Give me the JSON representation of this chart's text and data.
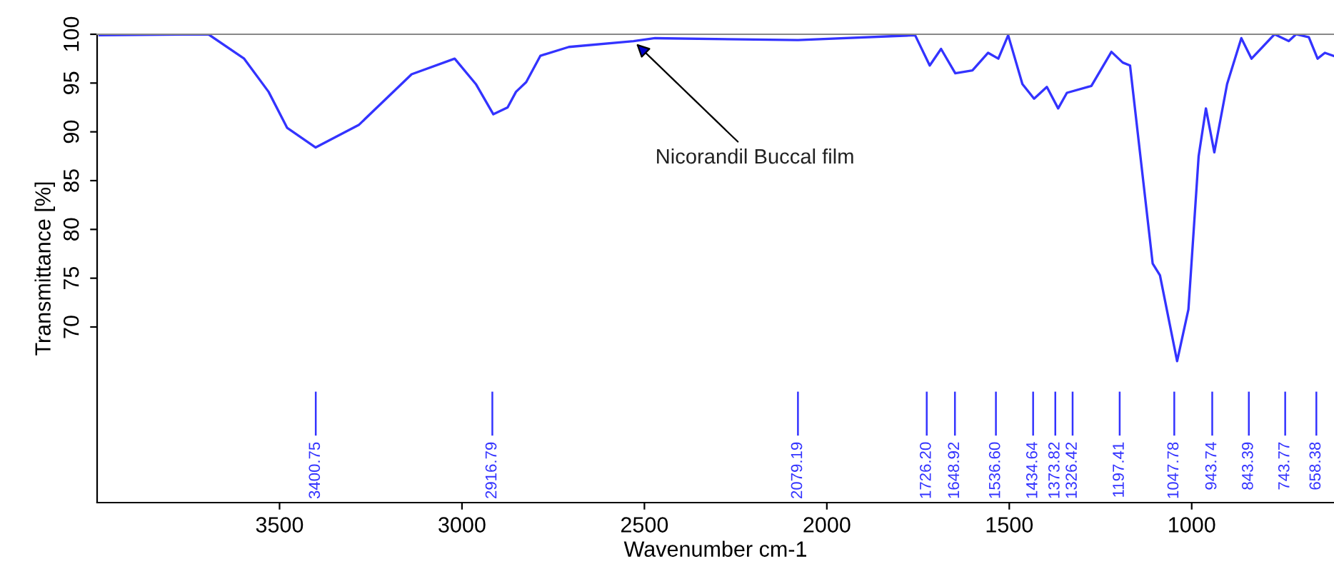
{
  "chart_data": {
    "type": "line",
    "xlabel": "Wavenumber cm-1",
    "ylabel": "Transmittance [%]",
    "xlim": [
      4000,
      610
    ],
    "ylim": [
      52,
      100
    ],
    "xticks": [
      3500,
      3000,
      2500,
      2000,
      1500,
      1000
    ],
    "yticks": [
      70,
      75,
      80,
      85,
      90,
      95,
      100
    ],
    "grid": false,
    "legend": false,
    "series": [
      {
        "color": "#3333ff",
        "x": [
          3993,
          3695,
          3597,
          3530,
          3479,
          3401,
          3283,
          3138,
          3020,
          2962,
          2914,
          2875,
          2852,
          2824,
          2785,
          2707,
          2530,
          2471,
          2079,
          1758,
          1718,
          1687,
          1648,
          1601,
          1558,
          1530,
          1503,
          1464,
          1432,
          1397,
          1366,
          1342,
          1275,
          1220,
          1189,
          1169,
          1107,
          1087,
          1040,
          1009,
          981,
          961,
          938,
          903,
          864,
          836,
          773,
          734,
          714,
          679,
          655,
          635,
          612
        ],
        "values": [
          99.9,
          100,
          97.5,
          94.1,
          90.4,
          88.4,
          90.7,
          95.9,
          97.5,
          94.9,
          91.8,
          92.5,
          94.1,
          95.1,
          97.8,
          98.7,
          99.3,
          99.6,
          99.4,
          99.9,
          96.8,
          98.5,
          96.0,
          96.3,
          98.1,
          97.5,
          99.9,
          94.9,
          93.4,
          94.6,
          92.4,
          94.0,
          94.7,
          98.2,
          97.1,
          96.8,
          76.5,
          75.3,
          66.5,
          71.8,
          87.5,
          92.4,
          87.9,
          94.9,
          99.6,
          97.5,
          100,
          99.3,
          100,
          99.7,
          97.5,
          98.1,
          97.8
        ]
      }
    ],
    "annotations": [
      {
        "text": "Nicorandil Buccal film",
        "x": 2530,
        "y": 99.3
      }
    ],
    "ref_lines": [
      {
        "axis": "x",
        "value": 3400.75,
        "label": "3400.75",
        "color": "#3333ff"
      },
      {
        "axis": "x",
        "value": 2916.79,
        "label": "2916.79",
        "color": "#3333ff"
      },
      {
        "axis": "x",
        "value": 2079.19,
        "label": "2079.19",
        "color": "#3333ff"
      },
      {
        "axis": "x",
        "value": 1726.2,
        "label": "1726.20",
        "color": "#3333ff"
      },
      {
        "axis": "x",
        "value": 1648.92,
        "label": "1648.92",
        "color": "#3333ff"
      },
      {
        "axis": "x",
        "value": 1536.6,
        "label": "1536.60",
        "color": "#3333ff"
      },
      {
        "axis": "x",
        "value": 1434.64,
        "label": "1434.64",
        "color": "#3333ff"
      },
      {
        "axis": "x",
        "value": 1373.82,
        "label": "1373.82",
        "color": "#3333ff"
      },
      {
        "axis": "x",
        "value": 1326.42,
        "label": "1326.42",
        "color": "#3333ff"
      },
      {
        "axis": "x",
        "value": 1197.41,
        "label": "1197.41",
        "color": "#3333ff"
      },
      {
        "axis": "x",
        "value": 1047.78,
        "label": "1047.78",
        "color": "#3333ff"
      },
      {
        "axis": "x",
        "value": 943.74,
        "label": "943.74",
        "color": "#3333ff"
      },
      {
        "axis": "x",
        "value": 843.39,
        "label": "843.39",
        "color": "#3333ff"
      },
      {
        "axis": "x",
        "value": 743.77,
        "label": "743.77",
        "color": "#3333ff"
      },
      {
        "axis": "x",
        "value": 658.38,
        "label": "658.38",
        "color": "#3333ff"
      }
    ]
  }
}
